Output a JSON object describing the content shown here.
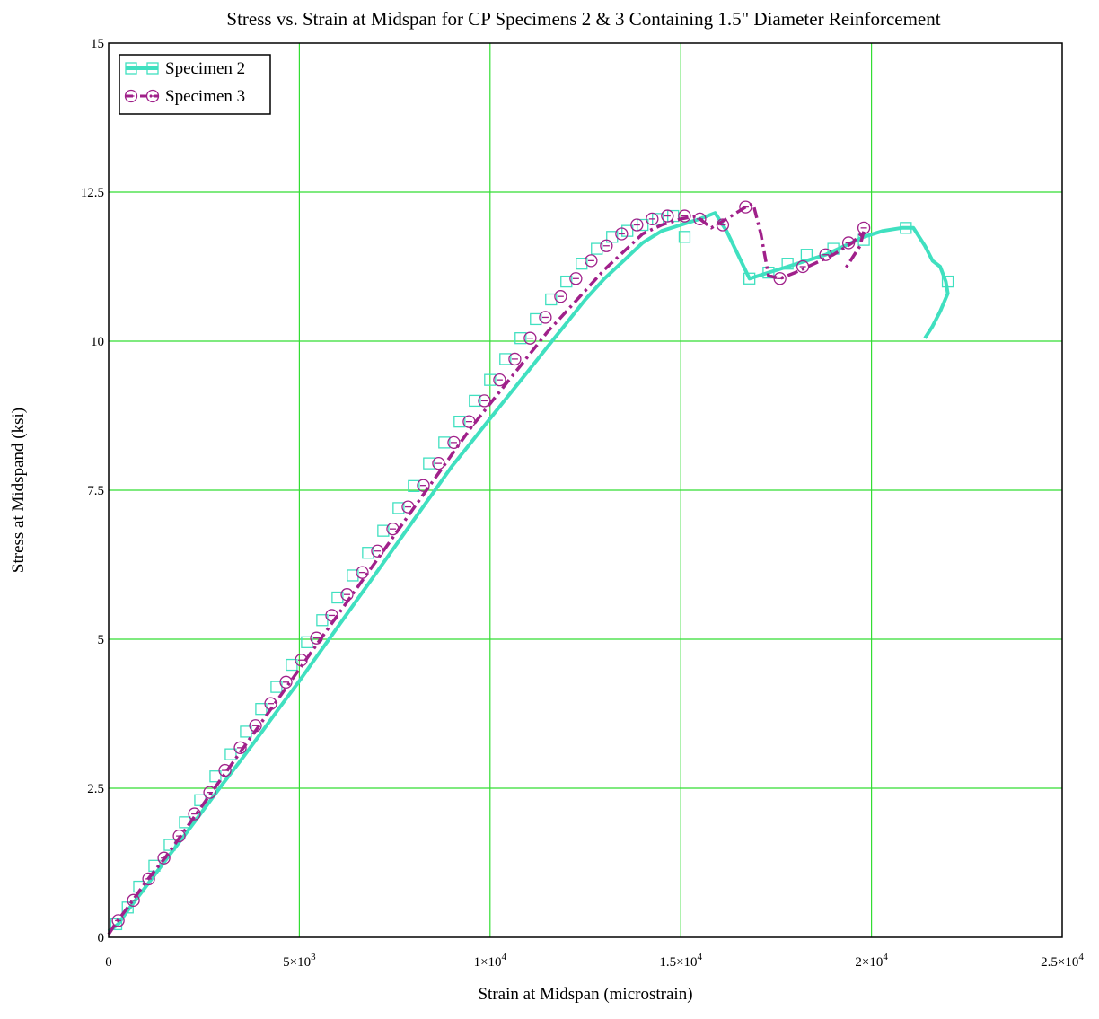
{
  "chart_data": {
    "type": "line",
    "title": "Stress vs. Strain at Midspan for CP Specimens 2 & 3 Containing 1.5\" Diameter Reinforcement",
    "xlabel": "Strain at Midspan (microstrain)",
    "ylabel": "Stress at Midspand (ksi)",
    "xlim": [
      0,
      25000
    ],
    "ylim": [
      0,
      15
    ],
    "grid": true,
    "legend_position": "top-left",
    "x_ticks": [
      {
        "value": 0,
        "mant": "0",
        "exp": ""
      },
      {
        "value": 5000,
        "mant": "5×10",
        "exp": "3"
      },
      {
        "value": 10000,
        "mant": "1×10",
        "exp": "4"
      },
      {
        "value": 15000,
        "mant": "1.5×10",
        "exp": "4"
      },
      {
        "value": 20000,
        "mant": "2×10",
        "exp": "4"
      },
      {
        "value": 25000,
        "mant": "2.5×10",
        "exp": "4"
      }
    ],
    "y_ticks": [
      {
        "value": 0,
        "label": "0"
      },
      {
        "value": 2.5,
        "label": "2.5"
      },
      {
        "value": 5,
        "label": "5"
      },
      {
        "value": 7.5,
        "label": "7.5"
      },
      {
        "value": 10,
        "label": "10"
      },
      {
        "value": 12.5,
        "label": "12.5"
      },
      {
        "value": 15,
        "label": "15"
      }
    ],
    "series": [
      {
        "name": "Specimen 2",
        "color": "#40E0C0",
        "marker": "square",
        "line_style": "solid",
        "x": [
          0,
          250,
          500,
          1000,
          1500,
          2000,
          2500,
          3000,
          3500,
          4000,
          4500,
          5000,
          5500,
          6000,
          6500,
          7000,
          7500,
          8000,
          8500,
          9000,
          9500,
          10000,
          10500,
          11000,
          11500,
          12000,
          12500,
          13000,
          13500,
          14000,
          14500,
          15000,
          15500,
          15900,
          16200,
          16800,
          17300,
          17800,
          18300,
          18800,
          19300,
          19800,
          20300,
          20800,
          21100,
          21400,
          21600,
          21800,
          21950,
          22000,
          21800,
          21600,
          21400
        ],
        "y": [
          0.1,
          0.22,
          0.45,
          0.87,
          1.3,
          1.72,
          2.15,
          2.58,
          3.0,
          3.43,
          3.87,
          4.3,
          4.75,
          5.2,
          5.65,
          6.1,
          6.55,
          7.0,
          7.45,
          7.9,
          8.3,
          8.7,
          9.1,
          9.5,
          9.9,
          10.3,
          10.7,
          11.05,
          11.35,
          11.65,
          11.85,
          11.95,
          12.05,
          12.15,
          11.85,
          11.05,
          11.15,
          11.25,
          11.35,
          11.45,
          11.6,
          11.75,
          11.85,
          11.9,
          11.9,
          11.6,
          11.35,
          11.25,
          11.0,
          10.8,
          10.5,
          10.25,
          10.05
        ],
        "marker_x": [
          200,
          500,
          800,
          1200,
          1600,
          2000,
          2400,
          2800,
          3200,
          3600,
          4000,
          4400,
          4800,
          5200,
          5600,
          6000,
          6400,
          6800,
          7200,
          7600,
          8000,
          8400,
          8800,
          9200,
          9600,
          10000,
          10400,
          10800,
          11200,
          11600,
          12000,
          12400,
          12800,
          13200,
          13600,
          14000,
          14400,
          14800,
          15100,
          16800,
          17300,
          17800,
          18300,
          19000,
          19800,
          20900,
          22000
        ],
        "marker_y": [
          0.22,
          0.5,
          0.85,
          1.2,
          1.55,
          1.93,
          2.3,
          2.7,
          3.07,
          3.45,
          3.83,
          4.2,
          4.57,
          4.95,
          5.32,
          5.7,
          6.07,
          6.45,
          6.82,
          7.2,
          7.57,
          7.95,
          8.3,
          8.65,
          9.0,
          9.35,
          9.7,
          10.05,
          10.37,
          10.7,
          11.0,
          11.3,
          11.55,
          11.75,
          11.85,
          11.95,
          12.05,
          12.1,
          11.75,
          11.05,
          11.15,
          11.3,
          11.45,
          11.55,
          11.7,
          11.9,
          11.0
        ]
      },
      {
        "name": "Specimen 3",
        "color": "#A0208A",
        "marker": "circle",
        "line_style": "dash-dot",
        "x": [
          0,
          200,
          500,
          1000,
          1500,
          2000,
          2500,
          3000,
          3500,
          4000,
          4500,
          5000,
          5500,
          6000,
          6500,
          7000,
          7500,
          8000,
          8500,
          9000,
          9500,
          10000,
          10500,
          11000,
          11500,
          12000,
          12500,
          13000,
          13500,
          14000,
          14500,
          15000,
          15400,
          15800,
          16200,
          16700,
          16900,
          17100,
          17300,
          17600,
          18000,
          18500,
          19000,
          19500,
          19800,
          19700,
          19500,
          19300
        ],
        "y": [
          0.05,
          0.25,
          0.5,
          0.95,
          1.35,
          1.8,
          2.25,
          2.7,
          3.15,
          3.6,
          4.05,
          4.5,
          4.95,
          5.4,
          5.85,
          6.3,
          6.75,
          7.2,
          7.65,
          8.1,
          8.55,
          8.95,
          9.35,
          9.75,
          10.15,
          10.5,
          10.85,
          11.2,
          11.5,
          11.8,
          11.95,
          12.05,
          12.1,
          11.9,
          12.05,
          12.25,
          12.3,
          11.8,
          11.1,
          11.05,
          11.15,
          11.3,
          11.45,
          11.65,
          11.85,
          11.6,
          11.4,
          11.2
        ],
        "marker_x": [
          250,
          650,
          1050,
          1450,
          1850,
          2250,
          2650,
          3050,
          3450,
          3850,
          4250,
          4650,
          5050,
          5450,
          5850,
          6250,
          6650,
          7050,
          7450,
          7850,
          8250,
          8650,
          9050,
          9450,
          9850,
          10250,
          10650,
          11050,
          11450,
          11850,
          12250,
          12650,
          13050,
          13450,
          13850,
          14250,
          14650,
          15100,
          15500,
          16100,
          16700,
          17600,
          18200,
          18800,
          19400,
          19800
        ],
        "marker_y": [
          0.28,
          0.62,
          0.98,
          1.33,
          1.7,
          2.07,
          2.43,
          2.8,
          3.18,
          3.55,
          3.92,
          4.28,
          4.65,
          5.02,
          5.4,
          5.75,
          6.12,
          6.48,
          6.85,
          7.22,
          7.58,
          7.95,
          8.3,
          8.65,
          9.0,
          9.35,
          9.7,
          10.05,
          10.4,
          10.75,
          11.05,
          11.35,
          11.6,
          11.8,
          11.95,
          12.05,
          12.1,
          12.1,
          12.05,
          11.95,
          12.25,
          11.05,
          11.25,
          11.45,
          11.65,
          11.9
        ]
      }
    ]
  }
}
